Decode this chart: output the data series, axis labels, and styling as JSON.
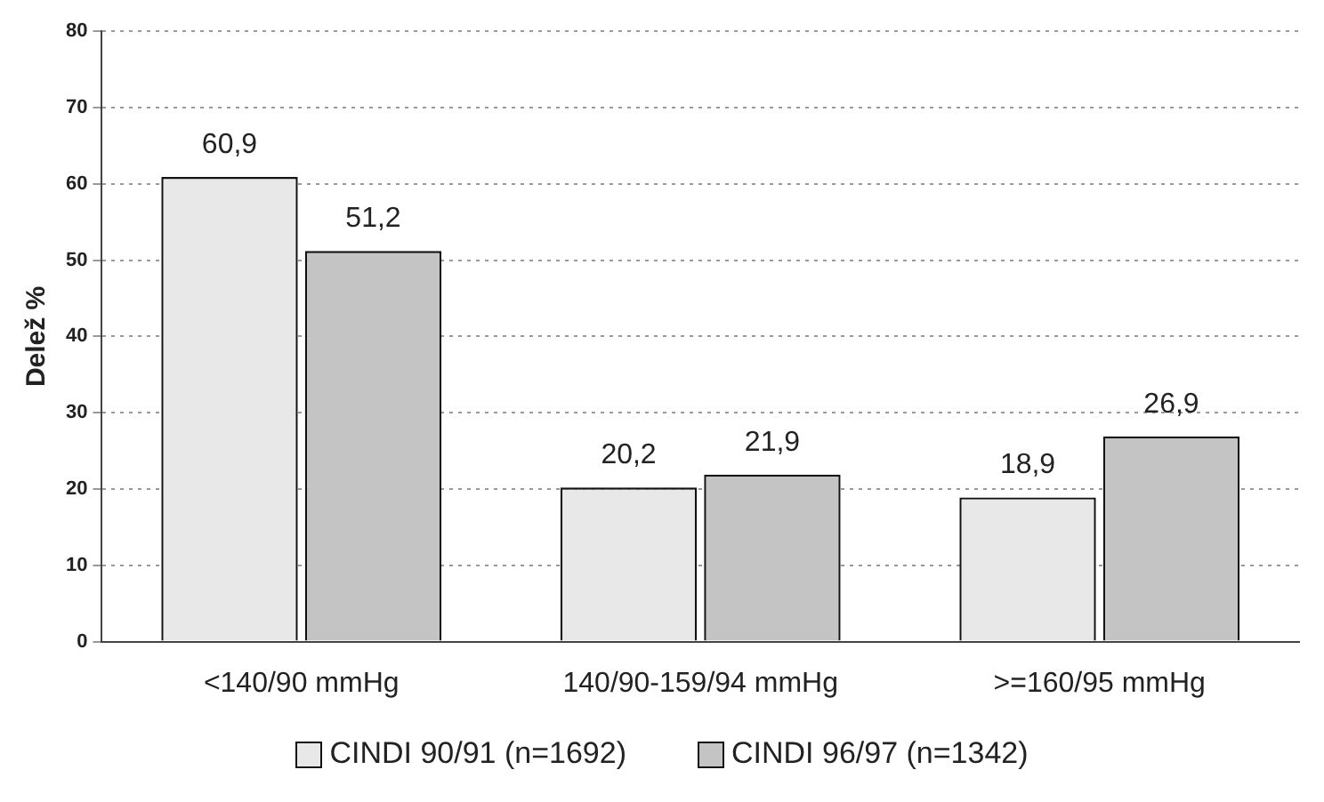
{
  "chart_data": {
    "type": "bar",
    "ylabel": "Delež %",
    "categories": [
      "<140/90 mmHg",
      "140/90-159/94 mmHg",
      ">=160/95 mmHg"
    ],
    "series": [
      {
        "name": "CINDI 90/91 (n=1692)",
        "color": "#e8e8e8",
        "values": [
          60.9,
          20.2,
          18.9
        ],
        "value_labels": [
          "60,9",
          "20,2",
          "18,9"
        ]
      },
      {
        "name": "CINDI 96/97 (n=1342)",
        "color": "#c4c4c4",
        "values": [
          51.2,
          21.9,
          26.9
        ],
        "value_labels": [
          "51,2",
          "21,9",
          "26,9"
        ]
      }
    ],
    "ylim": [
      0,
      80
    ],
    "yticks": [
      0,
      10,
      20,
      30,
      40,
      50,
      60,
      70,
      80
    ],
    "grid": "y",
    "legend": "bottom"
  }
}
